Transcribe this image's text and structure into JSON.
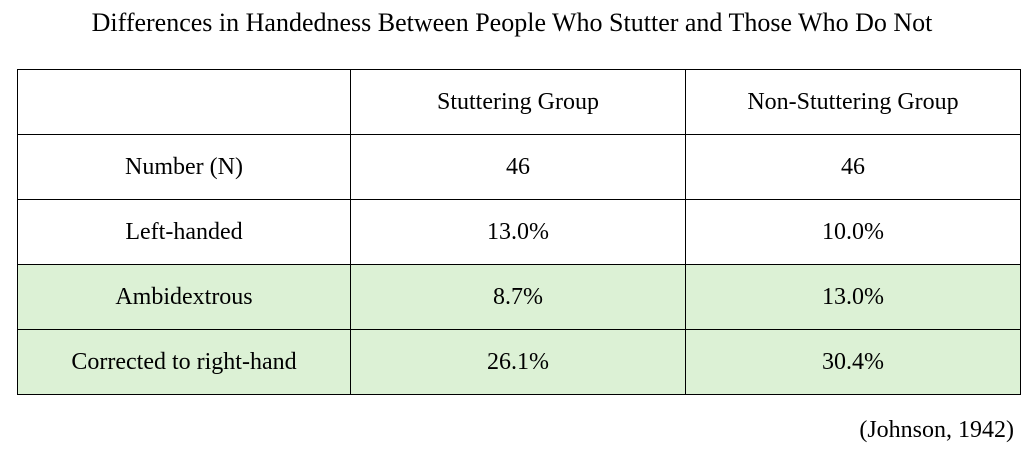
{
  "title": "Differences in Handedness Between People Who Stutter and Those Who Do Not",
  "source": "(Johnson, 1942)",
  "colors": {
    "highlight_row": "#dcf1d5",
    "border": "#000000"
  },
  "chart_data": {
    "type": "table",
    "title": "Differences in Handedness Between People Who Stutter and Those Who Do Not",
    "columns": [
      "",
      "Stuttering Group",
      "Non-Stuttering Group"
    ],
    "rows": [
      {
        "label": "Number (N)",
        "values": [
          "46",
          "46"
        ],
        "highlighted": false
      },
      {
        "label": "Left-handed",
        "values": [
          "13.0%",
          "10.0%"
        ],
        "highlighted": false
      },
      {
        "label": "Ambidextrous",
        "values": [
          "8.7%",
          "13.0%"
        ],
        "highlighted": true
      },
      {
        "label": "Corrected to right-hand",
        "values": [
          "26.1%",
          "30.4%"
        ],
        "highlighted": true
      }
    ],
    "source": "(Johnson, 1942)"
  }
}
